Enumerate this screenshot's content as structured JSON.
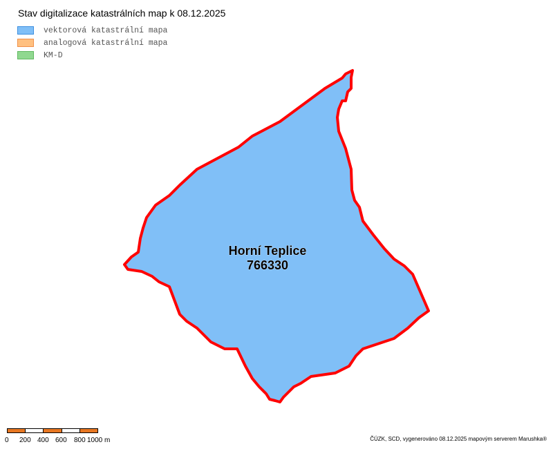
{
  "title": "Stav digitalizace katastrálních map k 08.12.2025",
  "legend": [
    {
      "label": "vektorová katastrální mapa",
      "fill": "#80bff7",
      "stroke": "#3d8fe0"
    },
    {
      "label": "analogová katastrální mapa",
      "fill": "#ffc080",
      "stroke": "#f0904a"
    },
    {
      "label": "KM-D",
      "fill": "#90d890",
      "stroke": "#60b860"
    }
  ],
  "map": {
    "area_name": "Horní Teplice",
    "area_code": "766330",
    "area_fill": "#80bff7",
    "boundary_color": "#ff0000"
  },
  "scale": {
    "labels": [
      "0",
      "200",
      "400",
      "600",
      "800",
      "1000 m"
    ],
    "colors": [
      "#e87722",
      "#ffffff"
    ]
  },
  "credit": "ČÚZK, SCD, vygenerováno 08.12.2025 mapovým serverem Marushka®"
}
